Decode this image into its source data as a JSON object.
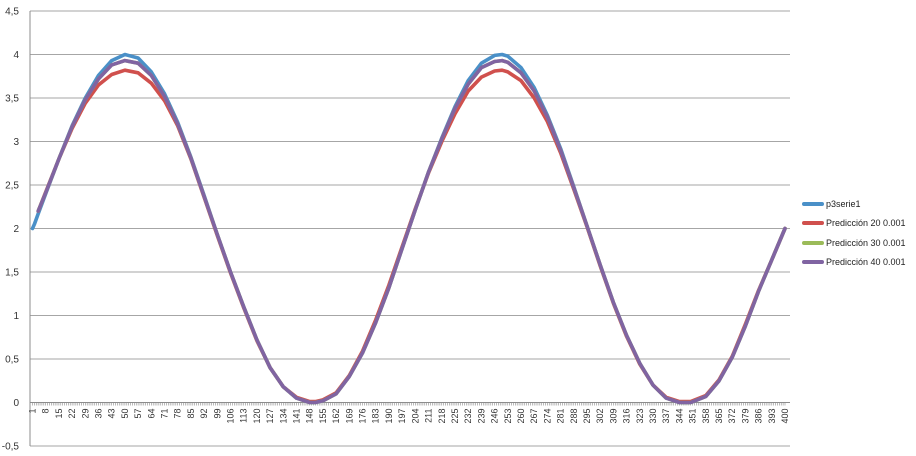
{
  "chart_data": {
    "type": "line",
    "title": "",
    "xlabel": "",
    "ylabel": "",
    "ylim": [
      -0.5,
      4.5
    ],
    "xlim": [
      1,
      400
    ],
    "y_ticks": [
      "-0,5",
      "0",
      "0,5",
      "1",
      "1,5",
      "2",
      "2,5",
      "3",
      "3,5",
      "4",
      "4,5"
    ],
    "x_ticks": [
      "1",
      "8",
      "15",
      "22",
      "29",
      "36",
      "43",
      "50",
      "57",
      "64",
      "71",
      "78",
      "85",
      "92",
      "99",
      "106",
      "113",
      "120",
      "127",
      "134",
      "141",
      "148",
      "155",
      "162",
      "169",
      "176",
      "183",
      "190",
      "197",
      "204",
      "211",
      "218",
      "225",
      "232",
      "239",
      "246",
      "253",
      "260",
      "267",
      "274",
      "281",
      "288",
      "295",
      "302",
      "309",
      "316",
      "323",
      "330",
      "337",
      "344",
      "351",
      "358",
      "365",
      "372",
      "379",
      "386",
      "393",
      "400"
    ],
    "grid": "horizontal",
    "legend_position": "right",
    "series": [
      {
        "name": "p3serie1",
        "color": "#4A90C8",
        "x": [
          1,
          2,
          4,
          8,
          15,
          22,
          29,
          36,
          43,
          50,
          57,
          64,
          71,
          78,
          85,
          92,
          99,
          106,
          113,
          120,
          127,
          134,
          141,
          148,
          151,
          155,
          162,
          169,
          176,
          183,
          190,
          197,
          204,
          211,
          218,
          225,
          232,
          239,
          246,
          250,
          253,
          260,
          267,
          274,
          281,
          288,
          295,
          302,
          309,
          316,
          323,
          330,
          337,
          344,
          350,
          358,
          365,
          372,
          379,
          386,
          393,
          400
        ],
        "y": [
          2.0,
          2.05,
          2.17,
          2.4,
          2.8,
          3.18,
          3.5,
          3.76,
          3.93,
          4.0,
          3.96,
          3.8,
          3.55,
          3.22,
          2.82,
          2.38,
          1.93,
          1.5,
          1.1,
          0.72,
          0.4,
          0.18,
          0.05,
          0.0,
          0.0,
          0.02,
          0.1,
          0.3,
          0.57,
          0.92,
          1.32,
          1.77,
          2.22,
          2.65,
          3.04,
          3.4,
          3.7,
          3.9,
          3.99,
          4.0,
          3.98,
          3.85,
          3.62,
          3.3,
          2.92,
          2.48,
          2.03,
          1.58,
          1.15,
          0.77,
          0.45,
          0.2,
          0.05,
          0.0,
          0.0,
          0.07,
          0.25,
          0.52,
          0.88,
          1.28,
          1.64,
          2.0
        ]
      },
      {
        "name": "Predicción 20 0.001",
        "color": "#D0504D",
        "x": [
          4,
          8,
          15,
          22,
          29,
          36,
          43,
          50,
          57,
          64,
          71,
          78,
          85,
          92,
          99,
          106,
          113,
          120,
          127,
          134,
          141,
          148,
          151,
          155,
          162,
          169,
          176,
          183,
          190,
          197,
          204,
          211,
          218,
          225,
          232,
          239,
          246,
          250,
          253,
          260,
          267,
          274,
          281,
          288,
          295,
          302,
          309,
          316,
          323,
          330,
          337,
          344,
          350,
          358,
          365,
          372,
          379,
          386,
          393,
          400
        ],
        "y": [
          2.2,
          2.42,
          2.8,
          3.15,
          3.44,
          3.65,
          3.77,
          3.82,
          3.79,
          3.67,
          3.47,
          3.18,
          2.8,
          2.36,
          1.92,
          1.49,
          1.09,
          0.71,
          0.4,
          0.18,
          0.06,
          0.01,
          0.01,
          0.03,
          0.11,
          0.31,
          0.59,
          0.95,
          1.35,
          1.79,
          2.23,
          2.64,
          3.0,
          3.32,
          3.58,
          3.74,
          3.81,
          3.82,
          3.8,
          3.7,
          3.5,
          3.23,
          2.87,
          2.45,
          2.02,
          1.57,
          1.14,
          0.76,
          0.44,
          0.2,
          0.06,
          0.01,
          0.01,
          0.08,
          0.26,
          0.53,
          0.9,
          1.29,
          1.64,
          2.0
        ]
      },
      {
        "name": "Predicción 30 0.001",
        "color": "#9BBB59",
        "x": [
          4,
          8,
          15,
          22,
          29,
          36,
          43,
          50,
          57,
          64,
          71,
          78,
          85,
          92,
          99,
          106,
          113,
          120,
          127,
          134,
          141,
          148,
          151,
          155,
          162,
          169,
          176,
          183,
          190,
          197,
          204,
          211,
          218,
          225,
          232,
          239,
          246,
          250,
          253,
          260,
          267,
          274,
          281,
          288,
          295,
          302,
          309,
          316,
          323,
          330,
          337,
          344,
          350,
          358,
          365,
          372,
          379,
          386,
          393,
          400
        ],
        "y": [
          2.2,
          2.41,
          2.8,
          3.17,
          3.48,
          3.72,
          3.88,
          3.93,
          3.9,
          3.76,
          3.52,
          3.2,
          2.81,
          2.37,
          1.93,
          1.5,
          1.1,
          0.72,
          0.4,
          0.18,
          0.05,
          0.0,
          0.0,
          0.02,
          0.1,
          0.3,
          0.57,
          0.92,
          1.32,
          1.77,
          2.22,
          2.65,
          3.03,
          3.38,
          3.66,
          3.85,
          3.92,
          3.93,
          3.91,
          3.79,
          3.58,
          3.28,
          2.9,
          2.47,
          2.03,
          1.58,
          1.15,
          0.77,
          0.45,
          0.2,
          0.05,
          0.0,
          0.0,
          0.07,
          0.25,
          0.52,
          0.88,
          1.28,
          1.64,
          2.0
        ]
      },
      {
        "name": "Predicción 40 0.001",
        "color": "#8064A2",
        "x": [
          4,
          8,
          15,
          22,
          29,
          36,
          43,
          50,
          57,
          64,
          71,
          78,
          85,
          92,
          99,
          106,
          113,
          120,
          127,
          134,
          141,
          148,
          151,
          155,
          162,
          169,
          176,
          183,
          190,
          197,
          204,
          211,
          218,
          225,
          232,
          239,
          246,
          250,
          253,
          260,
          267,
          274,
          281,
          288,
          295,
          302,
          309,
          316,
          323,
          330,
          337,
          344,
          350,
          358,
          365,
          372,
          379,
          386,
          393,
          400
        ],
        "y": [
          2.2,
          2.41,
          2.8,
          3.17,
          3.48,
          3.72,
          3.88,
          3.93,
          3.9,
          3.76,
          3.52,
          3.2,
          2.81,
          2.37,
          1.93,
          1.5,
          1.1,
          0.72,
          0.4,
          0.18,
          0.05,
          0.0,
          0.0,
          0.02,
          0.1,
          0.3,
          0.57,
          0.92,
          1.32,
          1.77,
          2.22,
          2.65,
          3.03,
          3.38,
          3.66,
          3.85,
          3.92,
          3.93,
          3.91,
          3.79,
          3.58,
          3.28,
          2.9,
          2.47,
          2.03,
          1.58,
          1.15,
          0.77,
          0.45,
          0.2,
          0.05,
          0.0,
          0.0,
          0.07,
          0.25,
          0.52,
          0.88,
          1.28,
          1.64,
          2.0
        ]
      }
    ]
  }
}
